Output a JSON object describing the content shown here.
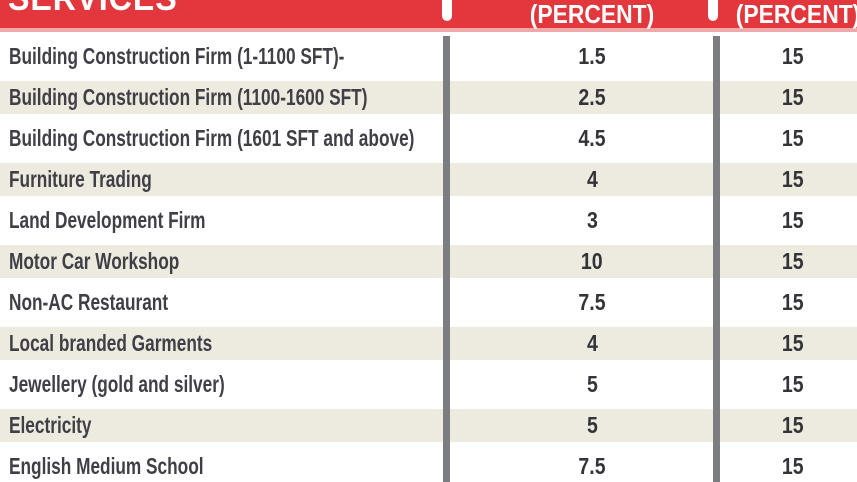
{
  "header": {
    "services_label": "SERVICES",
    "percent_labels": [
      "(PERCENT)",
      "(PERCENT)"
    ]
  },
  "chart_data": {
    "type": "table",
    "columns": [
      "SERVICES",
      "(PERCENT)",
      "(PERCENT)"
    ],
    "rows": [
      {
        "service": "Building Construction Firm (1-1100 SFT)-",
        "percent_1": "1.5",
        "percent_2": "15"
      },
      {
        "service": "Building Construction Firm (1100-1600 SFT)",
        "percent_1": "2.5",
        "percent_2": "15"
      },
      {
        "service": "Building Construction Firm (1601 SFT and above)",
        "percent_1": "4.5",
        "percent_2": "15"
      },
      {
        "service": "Furniture Trading",
        "percent_1": "4",
        "percent_2": "15"
      },
      {
        "service": "Land Development Firm",
        "percent_1": "3",
        "percent_2": "15"
      },
      {
        "service": "Motor Car Workshop",
        "percent_1": "10",
        "percent_2": "15"
      },
      {
        "service": "Non-AC Restaurant",
        "percent_1": "7.5",
        "percent_2": "15"
      },
      {
        "service": "Local branded Garments",
        "percent_1": "4",
        "percent_2": "15"
      },
      {
        "service": "Jewellery (gold and silver)",
        "percent_1": "5",
        "percent_2": "15"
      },
      {
        "service": "Electricity",
        "percent_1": "5",
        "percent_2": "15"
      },
      {
        "service": "English Medium School",
        "percent_1": "7.5",
        "percent_2": "15"
      }
    ]
  },
  "colors": {
    "header_red": "#e2383d",
    "header_edge_pink": "#f0a8a8",
    "row_stripe_beige": "#edeadf",
    "divider_gray": "#7c7d81",
    "label_text": "#413f46",
    "number_text": "#343438"
  }
}
